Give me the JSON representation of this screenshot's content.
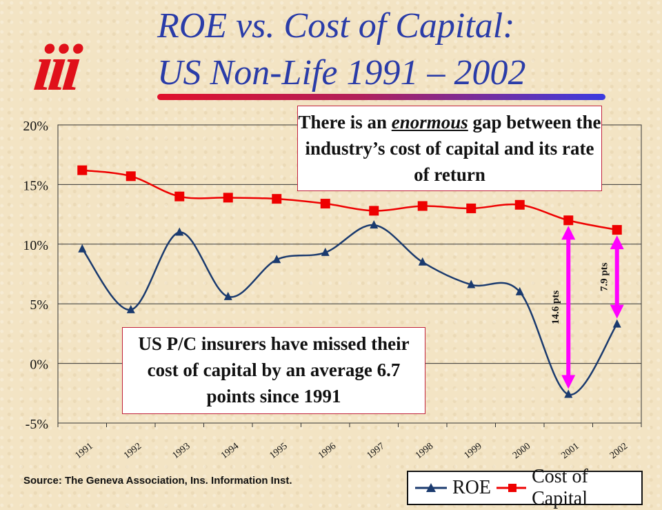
{
  "header": {
    "title_line1": "ROE vs. Cost of Capital:",
    "title_line2": "US Non-Life 1991 – 2002",
    "logo": "iii"
  },
  "callouts": {
    "top_pre": "There is an ",
    "top_emph": "enormous",
    "top_post": " gap between the industry’s cost of capital and its rate of return",
    "bottom": "US P/C insurers have missed their cost of capital by an average 6.7 points since 1991"
  },
  "annotations": {
    "gap_2001": "14.6 pts",
    "gap_2002": "7.9 pts"
  },
  "source": "Source:  The Geneva Association, Ins. Information Inst.",
  "colors": {
    "roe": "#1a3a6e",
    "cost_of_capital": "#ee0000",
    "arrows": "#ff00ff",
    "title": "#2a3ca8"
  },
  "chart_data": {
    "type": "line",
    "categories": [
      "1991",
      "1992",
      "1993",
      "1994",
      "1995",
      "1996",
      "1997",
      "1998",
      "1999",
      "2000",
      "2001",
      "2002"
    ],
    "ylim": [
      -5,
      20
    ],
    "yticks": [
      20,
      15,
      10,
      5,
      0,
      -5
    ],
    "ytick_labels": [
      "20%",
      "15%",
      "10%",
      "5%",
      "0%",
      "-5%"
    ],
    "series": [
      {
        "name": "ROE",
        "marker": "triangle",
        "values": [
          9.6,
          4.5,
          11.0,
          5.6,
          8.7,
          9.3,
          11.6,
          8.5,
          6.6,
          6.0,
          -2.6,
          3.3
        ]
      },
      {
        "name": "Cost of Capital",
        "marker": "square",
        "values": [
          16.2,
          15.7,
          14.0,
          13.9,
          13.8,
          13.4,
          12.8,
          13.2,
          13.0,
          13.3,
          12.0,
          11.2
        ]
      }
    ],
    "grid": "horizontal",
    "legend": "bottom-right"
  }
}
